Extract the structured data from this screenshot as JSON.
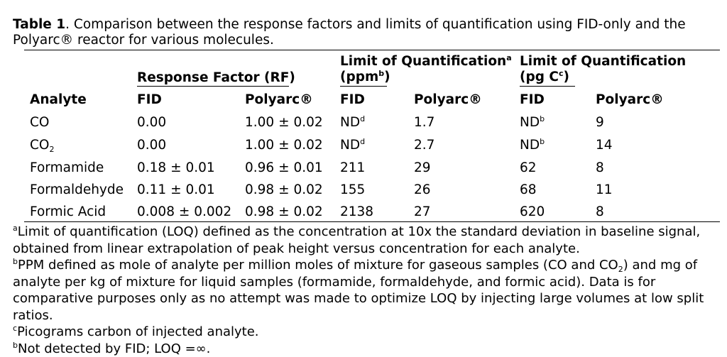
{
  "caption": {
    "label": "Table 1",
    "text": ". Comparison between the response factors and limits of quantification using FID-only and the Polyarc® reactor for various molecules."
  },
  "header": {
    "response_factor": "Response Factor (RF)",
    "loq_ppm_line1": "Limit of Quantification",
    "loq_ppm_sup": "a",
    "loq_ppm_line2_pre": "(ppm",
    "loq_ppm_line2_sup": "b",
    "loq_ppm_line2_post": ")",
    "loq_pg_line1": "Limit of Quantification",
    "loq_pg_line2_pre": "(pg C",
    "loq_pg_line2_sup": "c",
    "loq_pg_line2_post": ")",
    "analyte": "Analyte",
    "fid": "FID",
    "polyarc": "Polyarc®"
  },
  "rows": [
    {
      "name": "CO",
      "sub": "",
      "rf_fid": "0.00",
      "rf_polyarc": "1.00 ± 0.02",
      "loq_ppm_fid": "ND",
      "loq_ppm_fid_sup": "d",
      "loq_ppm_polyarc": "1.7",
      "loq_pg_fid": "ND",
      "loq_pg_fid_sup": "b",
      "loq_pg_polyarc": "9"
    },
    {
      "name": "CO",
      "sub": "2",
      "rf_fid": "0.00",
      "rf_polyarc": "1.00 ± 0.02",
      "loq_ppm_fid": "ND",
      "loq_ppm_fid_sup": "d",
      "loq_ppm_polyarc": "2.7",
      "loq_pg_fid": "ND",
      "loq_pg_fid_sup": "b",
      "loq_pg_polyarc": "14"
    },
    {
      "name": "Formamide",
      "sub": "",
      "rf_fid": "0.18 ± 0.01",
      "rf_polyarc": "0.96 ± 0.01",
      "loq_ppm_fid": "211",
      "loq_ppm_fid_sup": "",
      "loq_ppm_polyarc": "29",
      "loq_pg_fid": "62",
      "loq_pg_fid_sup": "",
      "loq_pg_polyarc": "8"
    },
    {
      "name": "Formaldehyde",
      "sub": "",
      "rf_fid": "0.11 ± 0.01",
      "rf_polyarc": "0.98 ± 0.02",
      "loq_ppm_fid": "155",
      "loq_ppm_fid_sup": "",
      "loq_ppm_polyarc": "26",
      "loq_pg_fid": "68",
      "loq_pg_fid_sup": "",
      "loq_pg_polyarc": "11"
    },
    {
      "name": "Formic Acid",
      "sub": "",
      "rf_fid": "0.008 ± 0.002",
      "rf_polyarc": "0.98 ± 0.02",
      "loq_ppm_fid": "2138",
      "loq_ppm_fid_sup": "",
      "loq_ppm_polyarc": "27",
      "loq_pg_fid": "620",
      "loq_pg_fid_sup": "",
      "loq_pg_polyarc": "8"
    }
  ],
  "notes": {
    "a_sup": "a",
    "a_text": "Limit of quantification (LOQ) defined as the concentration at 10x the standard deviation in baseline signal, obtained from linear extrapolation of peak height versus concentration for each analyte.",
    "b_sup": "b",
    "b_text_1": "PPM defined as mole of analyte per million moles of mixture for gaseous samples (CO and CO",
    "b_sub": "2",
    "b_text_2": ") and mg of analyte per kg of mixture for liquid samples (formamide, formaldehyde, and formic acid). Data is for comparative purposes only as no attempt was made to optimize LOQ by injecting large volumes at low split ratios.",
    "c_sup": "c",
    "c_text": "Picograms carbon of injected analyte.",
    "d_sup": "b",
    "d_text": "Not detected by FID; LOQ =∞."
  }
}
